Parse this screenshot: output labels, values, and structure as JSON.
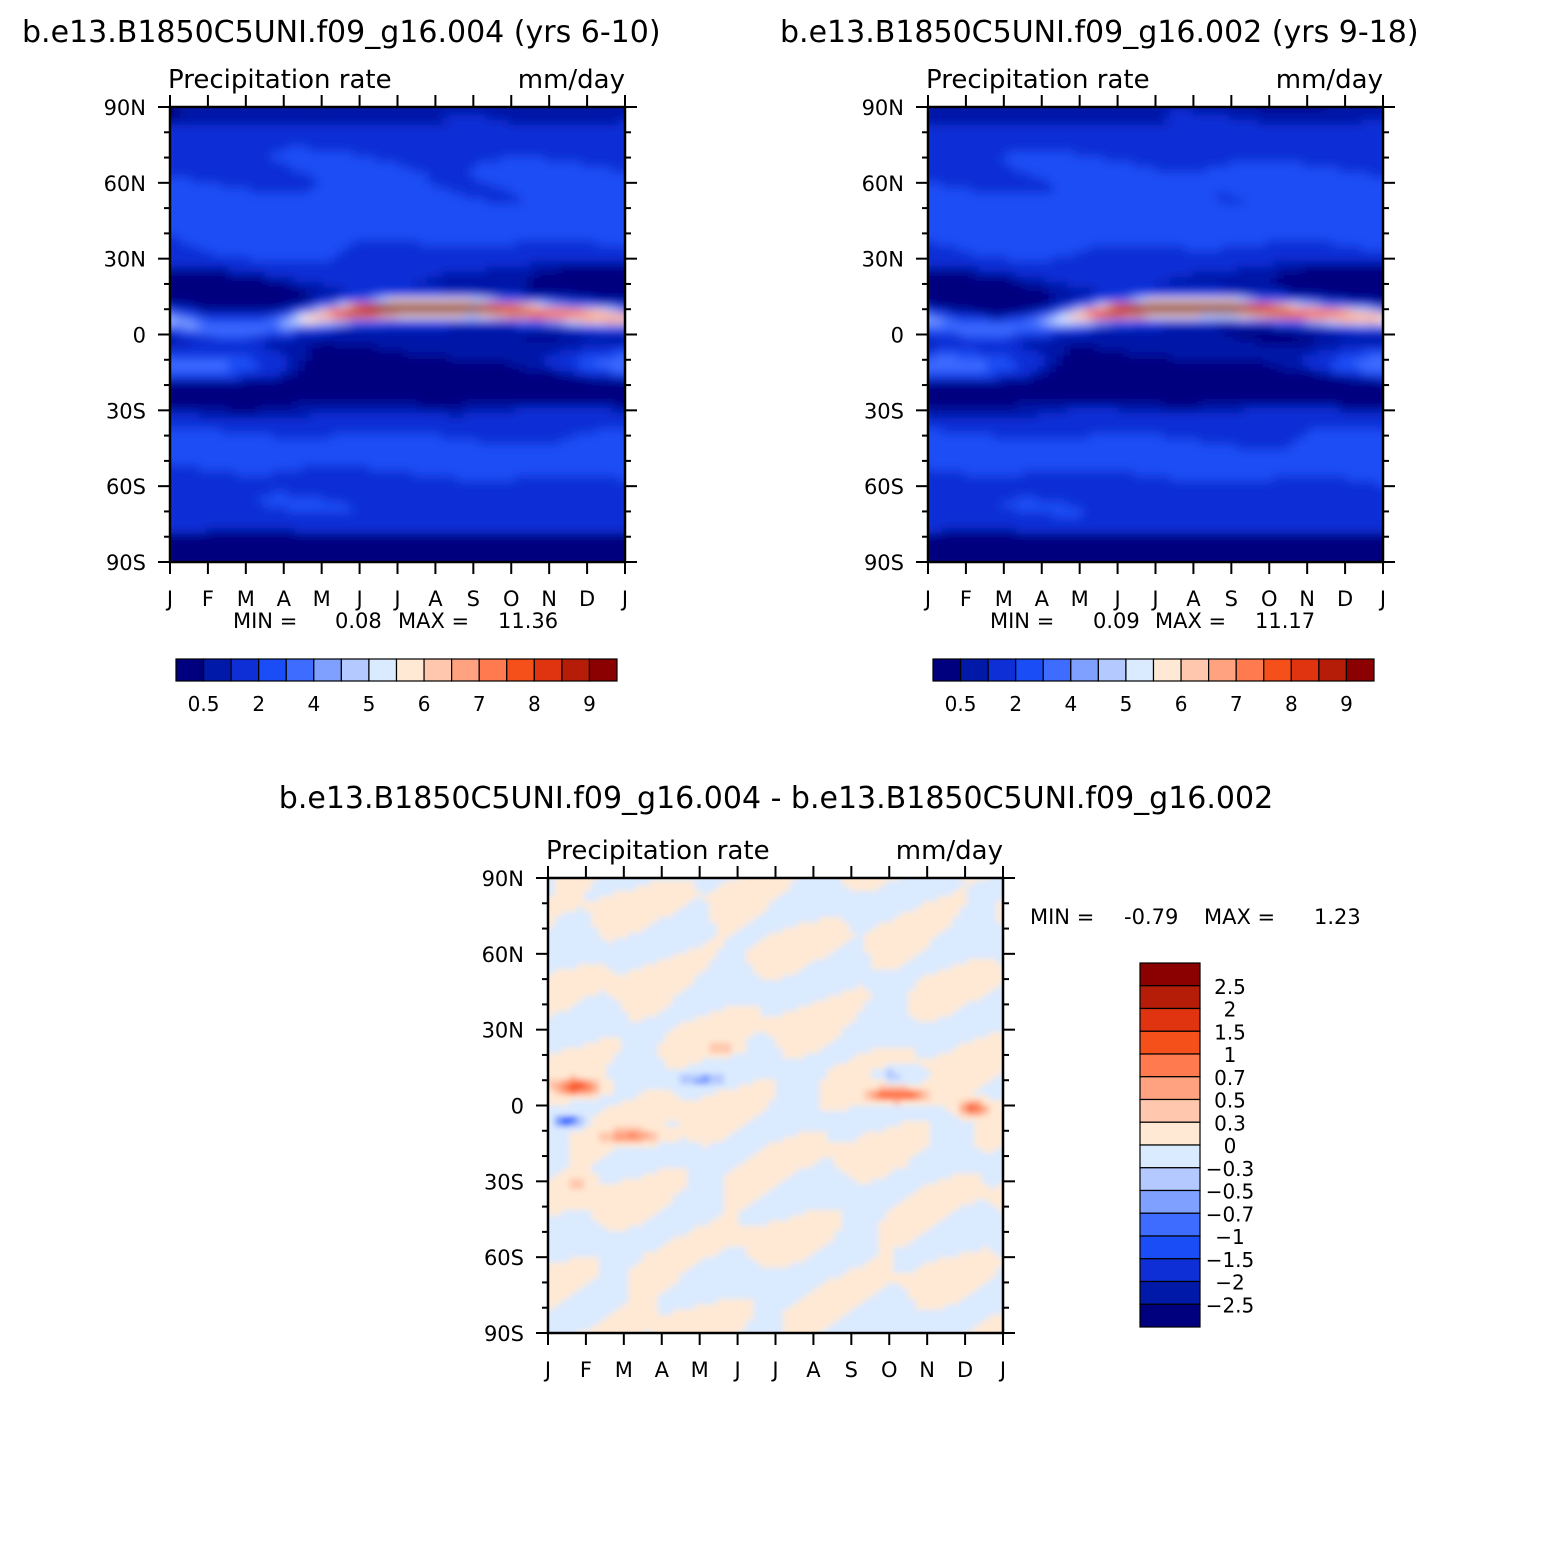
{
  "colors": {
    "seq": [
      "#00007f",
      "#0019a8",
      "#0f2fd6",
      "#1a4df5",
      "#3d6cff",
      "#7fa0ff",
      "#b3c9ff",
      "#daeaff",
      "#ffe9d4",
      "#ffc7ad",
      "#ffa27f",
      "#ff7a4f",
      "#f54f1a",
      "#e03310",
      "#b51d08",
      "#8b0000"
    ],
    "diff": [
      "#00007f",
      "#0019a8",
      "#0f2fd6",
      "#1a4df5",
      "#3d6cff",
      "#7fa0ff",
      "#b3c9ff",
      "#daeaff",
      "#ffe9d4",
      "#ffc7ad",
      "#ffa27f",
      "#ff7a4f",
      "#f54f1a",
      "#e03310",
      "#b51d08",
      "#8b0000"
    ]
  },
  "chart_data": [
    {
      "type": "heatmap",
      "title": "b.e13.B1850C5UNI.f09_g16.004 (yrs 6-10)",
      "subtitle_left": "Precipitation  rate",
      "subtitle_right": "mm/day",
      "x_ticks": [
        "J",
        "F",
        "M",
        "A",
        "M",
        "J",
        "J",
        "A",
        "S",
        "O",
        "N",
        "D",
        "J"
      ],
      "y_ticks": [
        "90N",
        "60N",
        "30N",
        "0",
        "30S",
        "60S",
        "90S"
      ],
      "min_label": "MIN =",
      "min_value": "0.08",
      "max_label": "MAX =",
      "max_value": "11.36",
      "colorbar_labels": [
        "0.5",
        "2",
        "4",
        "5",
        "6",
        "7",
        "8",
        "9"
      ],
      "itcz_lat_by_month": [
        6,
        3,
        2,
        4,
        7,
        9,
        10,
        10,
        10,
        9,
        8,
        7,
        6
      ],
      "itcz_peak_by_month": [
        5.5,
        4.5,
        4.0,
        5.0,
        8.0,
        10.5,
        11.3,
        11.36,
        11.0,
        10.0,
        9.0,
        8.5,
        7.5
      ]
    },
    {
      "type": "heatmap",
      "title": "b.e13.B1850C5UNI.f09_g16.002 (yrs 9-18)",
      "subtitle_left": "Precipitation  rate",
      "subtitle_right": "mm/day",
      "x_ticks": [
        "J",
        "F",
        "M",
        "A",
        "M",
        "J",
        "J",
        "A",
        "S",
        "O",
        "N",
        "D",
        "J"
      ],
      "y_ticks": [
        "90N",
        "60N",
        "30N",
        "0",
        "30S",
        "60S",
        "90S"
      ],
      "min_label": "MIN =",
      "min_value": "0.09",
      "max_label": "MAX =",
      "max_value": "11.17",
      "colorbar_labels": [
        "0.5",
        "2",
        "4",
        "5",
        "6",
        "7",
        "8",
        "9"
      ],
      "itcz_lat_by_month": [
        6,
        3,
        2,
        4,
        7,
        9,
        10,
        10,
        10,
        9,
        8,
        7,
        6
      ],
      "itcz_peak_by_month": [
        5.3,
        4.4,
        4.0,
        5.0,
        7.8,
        10.2,
        11.1,
        11.17,
        10.8,
        9.8,
        8.8,
        8.3,
        7.2
      ]
    },
    {
      "type": "heatmap",
      "title": "b.e13.B1850C5UNI.f09_g16.004 - b.e13.B1850C5UNI.f09_g16.002",
      "subtitle_left": "Precipitation  rate",
      "subtitle_right": "mm/day",
      "x_ticks": [
        "J",
        "F",
        "M",
        "A",
        "M",
        "J",
        "J",
        "A",
        "S",
        "O",
        "N",
        "D",
        "J"
      ],
      "y_ticks": [
        "90N",
        "60N",
        "30N",
        "0",
        "30S",
        "60S",
        "90S"
      ],
      "min_label": "MIN =",
      "min_value": "-0.79",
      "max_label": "MAX =",
      "max_value": "1.23",
      "colorbar_labels": [
        "2.5",
        "2",
        "1.5",
        "1",
        "0.7",
        "0.5",
        "0.3",
        "0",
        "-0.3",
        "-0.5",
        "-0.7",
        "-1",
        "-1.5",
        "-2",
        "-2.5"
      ]
    }
  ]
}
